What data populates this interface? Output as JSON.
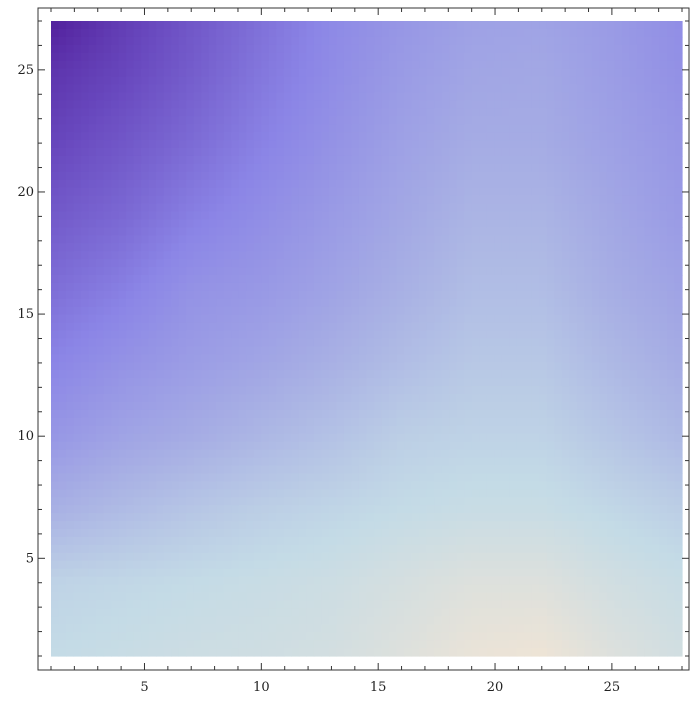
{
  "chart_data": {
    "type": "heatmap",
    "title": "",
    "xlabel": "",
    "ylabel": "",
    "xlim": [
      1,
      28
    ],
    "ylim": [
      1,
      27
    ],
    "x_ticks": [
      "5",
      "10",
      "15",
      "20",
      "25"
    ],
    "y_ticks": [
      "5",
      "10",
      "15",
      "20",
      "25"
    ],
    "grid": false,
    "legend": "none",
    "colormap": [
      "#4a1290",
      "#6a4bc0",
      "#8b85e6",
      "#a8b0e4",
      "#c4dbe6",
      "#eee4d6"
    ],
    "z_grid_x": [
      1,
      4,
      7,
      10,
      13,
      16,
      19,
      22,
      25,
      28
    ],
    "z_grid_y": [
      1,
      4,
      7,
      10,
      13,
      16,
      19,
      22,
      25,
      27
    ],
    "z_values": [
      [
        0.8,
        0.82,
        0.84,
        0.85,
        0.87,
        0.92,
        0.98,
        1.0,
        0.92,
        0.86
      ],
      [
        0.76,
        0.78,
        0.8,
        0.82,
        0.84,
        0.88,
        0.92,
        0.92,
        0.86,
        0.82
      ],
      [
        0.6,
        0.65,
        0.7,
        0.74,
        0.77,
        0.8,
        0.82,
        0.82,
        0.78,
        0.74
      ],
      [
        0.48,
        0.54,
        0.58,
        0.63,
        0.68,
        0.74,
        0.76,
        0.76,
        0.7,
        0.64
      ],
      [
        0.4,
        0.46,
        0.51,
        0.55,
        0.6,
        0.66,
        0.71,
        0.71,
        0.64,
        0.58
      ],
      [
        0.32,
        0.38,
        0.46,
        0.49,
        0.54,
        0.6,
        0.66,
        0.66,
        0.59,
        0.54
      ],
      [
        0.25,
        0.3,
        0.38,
        0.44,
        0.5,
        0.56,
        0.62,
        0.62,
        0.56,
        0.5
      ],
      [
        0.18,
        0.24,
        0.31,
        0.39,
        0.46,
        0.53,
        0.58,
        0.58,
        0.53,
        0.48
      ],
      [
        0.12,
        0.18,
        0.26,
        0.35,
        0.43,
        0.5,
        0.55,
        0.56,
        0.51,
        0.45
      ],
      [
        0.05,
        0.15,
        0.24,
        0.33,
        0.42,
        0.48,
        0.53,
        0.54,
        0.5,
        0.44
      ]
    ]
  }
}
